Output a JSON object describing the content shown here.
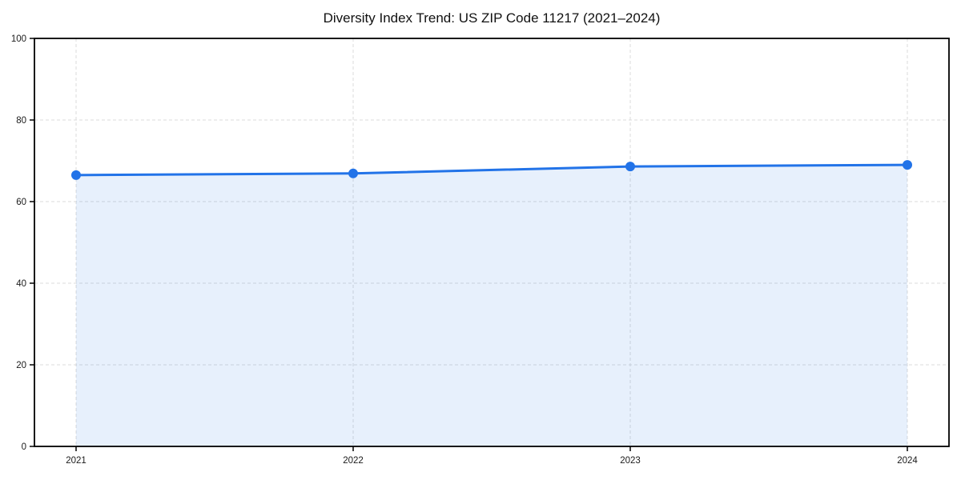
{
  "chart_data": {
    "type": "area",
    "title": "Diversity Index Trend: US ZIP Code 11217 (2021–2024)",
    "categories": [
      "2021",
      "2022",
      "2023",
      "2024"
    ],
    "series": [
      {
        "name": "Diversity Index",
        "values": [
          66.5,
          66.9,
          68.6,
          69.0
        ]
      }
    ],
    "xlabel": "",
    "ylabel": "",
    "ylim": [
      0,
      100
    ],
    "yticks": [
      0,
      20,
      40,
      60,
      80,
      100
    ],
    "grid": "dashed",
    "legend": "none",
    "marker": "circle",
    "colors": {
      "line": "#2273E8",
      "marker": "#2273E8",
      "fill": "rgba(34,115,232,0.11)",
      "gridline": "#DBDBDB",
      "axis": "#000000",
      "tick_text": "#1A1A1A",
      "title_text": "#111111",
      "background": "#FFFFFF"
    }
  }
}
